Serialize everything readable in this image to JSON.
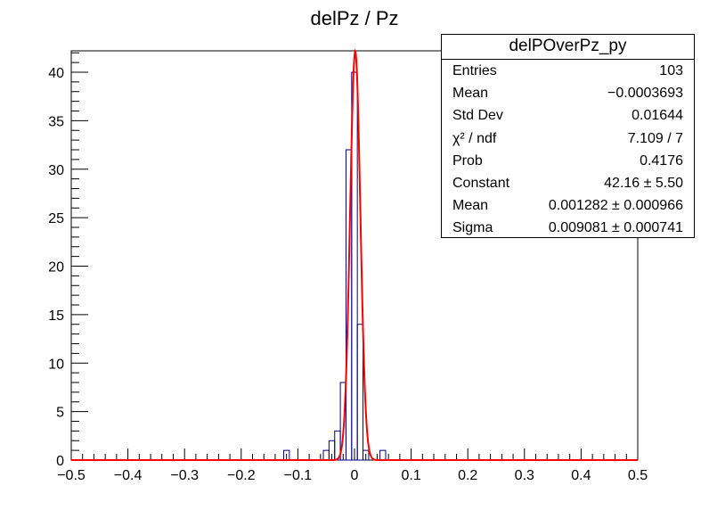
{
  "chart_data": {
    "type": "bar",
    "title": "delPz / Pz",
    "xlabel": "",
    "ylabel": "",
    "xlim": [
      -0.5,
      0.5
    ],
    "ylim": [
      0,
      42
    ],
    "x_ticks": [
      "-0.5",
      "-0.4",
      "-0.3",
      "-0.2",
      "-0.1",
      "0",
      "0.1",
      "0.2",
      "0.3",
      "0.4",
      "0.5"
    ],
    "y_ticks": [
      "0",
      "5",
      "10",
      "15",
      "20",
      "25",
      "30",
      "35",
      "40"
    ],
    "bin_width": 0.01,
    "histogram": {
      "name": "delPOverPz_py",
      "color": "#000080",
      "bins": [
        {
          "x": -0.12,
          "count": 1
        },
        {
          "x": -0.05,
          "count": 1
        },
        {
          "x": -0.04,
          "count": 2
        },
        {
          "x": -0.03,
          "count": 3
        },
        {
          "x": -0.02,
          "count": 8
        },
        {
          "x": -0.01,
          "count": 32
        },
        {
          "x": 0.0,
          "count": 40
        },
        {
          "x": 0.01,
          "count": 14
        },
        {
          "x": 0.02,
          "count": 1
        },
        {
          "x": 0.05,
          "count": 1
        }
      ]
    },
    "fit": {
      "type": "gaussian",
      "color": "#ff0000",
      "constant": 42.16,
      "mean": 0.001282,
      "sigma": 0.009081
    },
    "stats": {
      "title": "delPOverPz_py",
      "rows": [
        {
          "label": "Entries",
          "value": "103"
        },
        {
          "label": "Mean",
          "value": "−0.0003693"
        },
        {
          "label": "Std Dev",
          "value": "0.01644"
        },
        {
          "label": "χ² / ndf",
          "value": "7.109 / 7"
        },
        {
          "label": "Prob",
          "value": "0.4176"
        },
        {
          "label": "Constant",
          "value": "42.16 ± 5.50"
        },
        {
          "label": "Mean",
          "value": "0.001282 ± 0.000966"
        },
        {
          "label": "Sigma",
          "value": "0.009081 ± 0.000741"
        }
      ]
    }
  }
}
